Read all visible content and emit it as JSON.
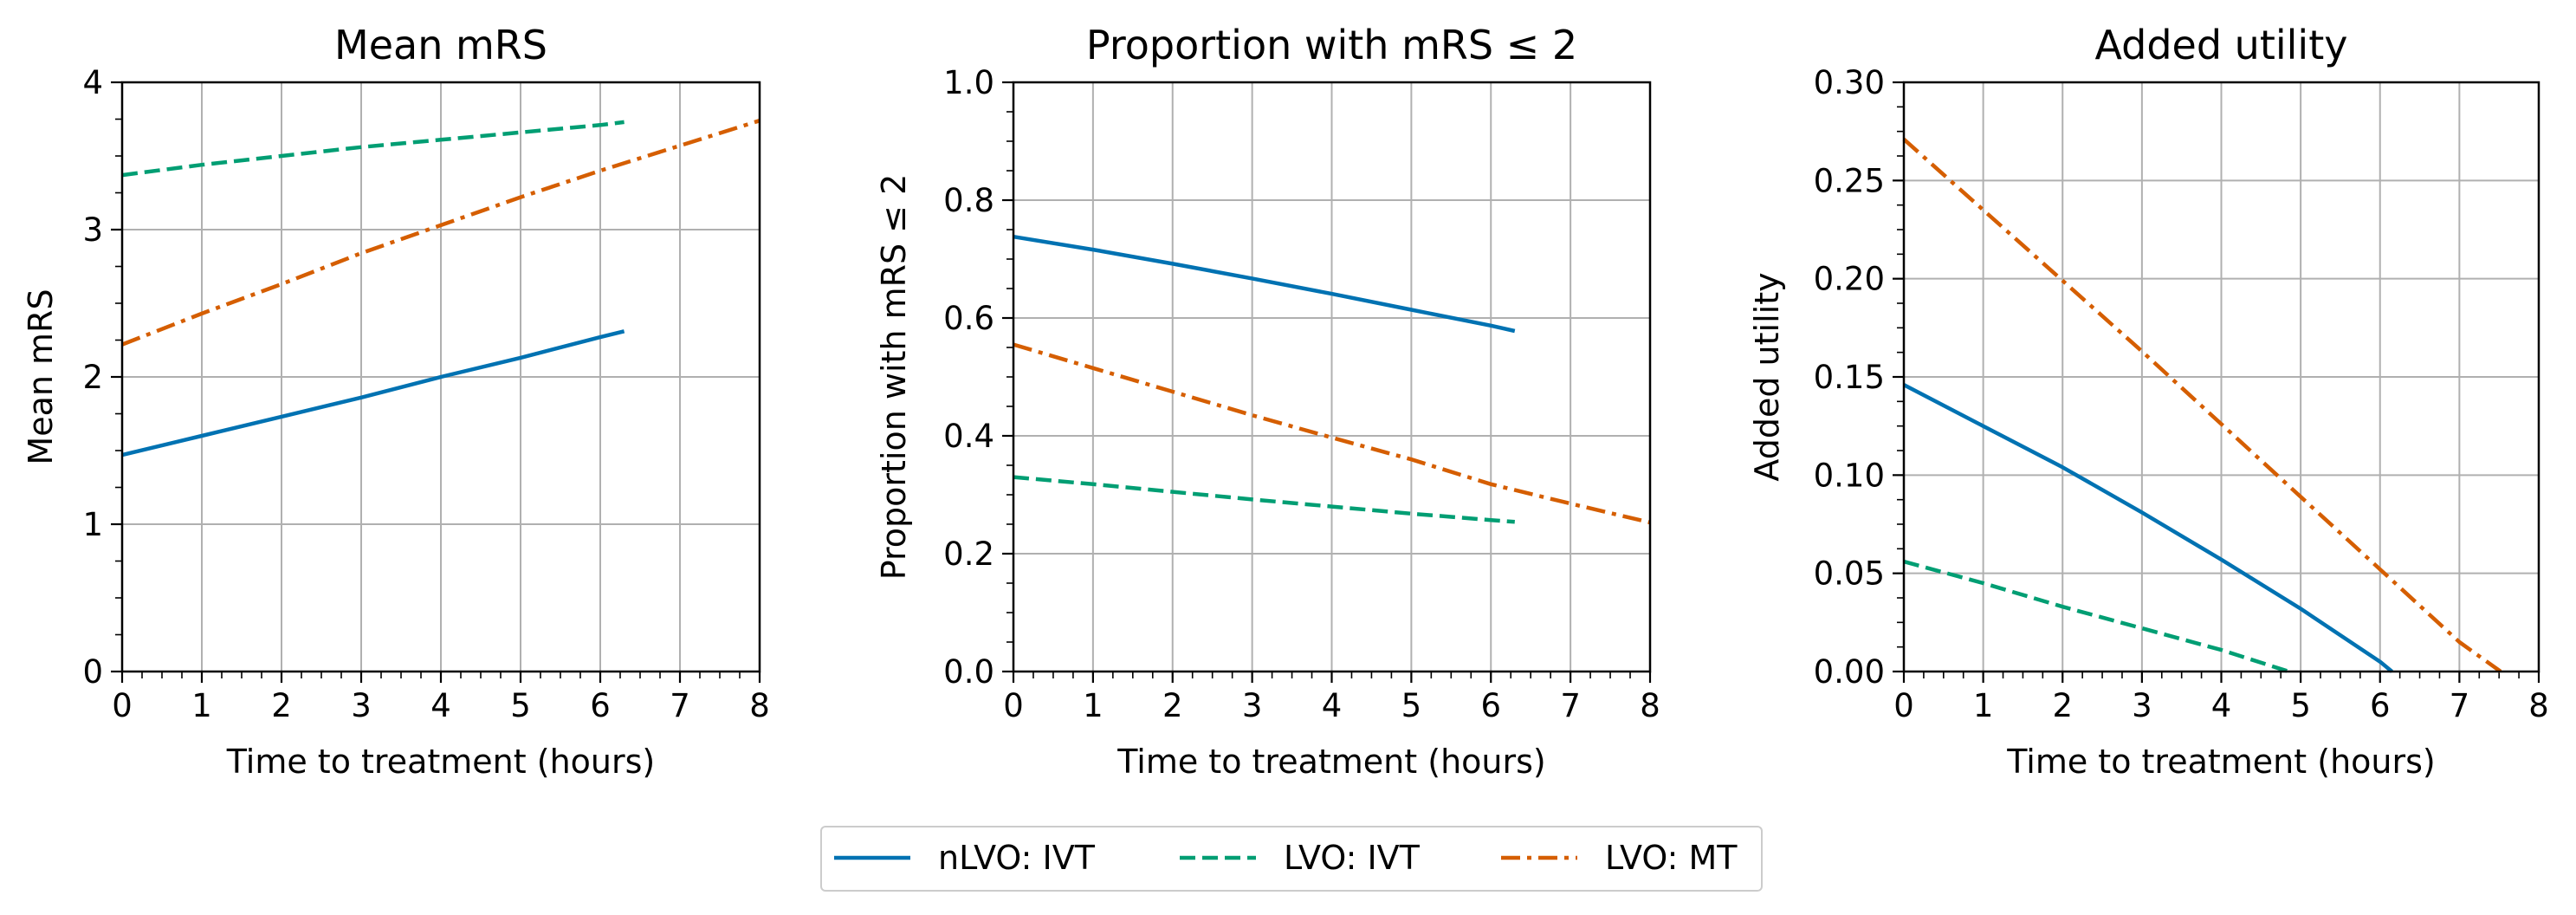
{
  "chart_data": [
    {
      "type": "line",
      "title": "Mean mRS",
      "xlabel": "Time to treatment (hours)",
      "ylabel": "Mean mRS",
      "xlim": [
        0,
        8
      ],
      "ylim": [
        0,
        4
      ],
      "xticks": [
        0,
        1,
        2,
        3,
        4,
        5,
        6,
        7,
        8
      ],
      "yticks": [
        0,
        1,
        2,
        3,
        4
      ],
      "ytick_labels": [
        "0",
        "1",
        "2",
        "3",
        "4"
      ],
      "grid": true,
      "series": [
        {
          "name": "nLVO: IVT",
          "x": [
            0,
            1,
            2,
            3,
            4,
            5,
            6,
            6.3
          ],
          "y": [
            1.47,
            1.6,
            1.73,
            1.86,
            2.0,
            2.13,
            2.27,
            2.31
          ]
        },
        {
          "name": "LVO: IVT",
          "x": [
            0,
            1,
            2,
            3,
            4,
            5,
            6,
            6.3
          ],
          "y": [
            3.37,
            3.44,
            3.5,
            3.56,
            3.61,
            3.66,
            3.71,
            3.73
          ]
        },
        {
          "name": "LVO: MT",
          "x": [
            0,
            1,
            2,
            3,
            4,
            5,
            6,
            7,
            8
          ],
          "y": [
            2.22,
            2.43,
            2.63,
            2.84,
            3.03,
            3.22,
            3.4,
            3.57,
            3.74
          ]
        }
      ]
    },
    {
      "type": "line",
      "title": "Proportion with mRS ≤ 2",
      "xlabel": "Time to treatment (hours)",
      "ylabel": "Proportion with mRS ≤ 2",
      "xlim": [
        0,
        8
      ],
      "ylim": [
        0,
        1
      ],
      "xticks": [
        0,
        1,
        2,
        3,
        4,
        5,
        6,
        7,
        8
      ],
      "yticks": [
        0,
        0.2,
        0.4,
        0.6,
        0.8,
        1.0
      ],
      "ytick_labels": [
        "0.0",
        "0.2",
        "0.4",
        "0.6",
        "0.8",
        "1.0"
      ],
      "grid": true,
      "series": [
        {
          "name": "nLVO: IVT",
          "x": [
            0,
            1,
            2,
            3,
            4,
            5,
            6,
            6.3
          ],
          "y": [
            0.738,
            0.716,
            0.692,
            0.667,
            0.641,
            0.614,
            0.587,
            0.578
          ]
        },
        {
          "name": "LVO: IVT",
          "x": [
            0,
            1,
            2,
            3,
            4,
            5,
            6,
            6.3
          ],
          "y": [
            0.33,
            0.318,
            0.305,
            0.292,
            0.28,
            0.268,
            0.257,
            0.254
          ]
        },
        {
          "name": "LVO: MT",
          "x": [
            0,
            1,
            2,
            3,
            4,
            5,
            6,
            7,
            8
          ],
          "y": [
            0.555,
            0.515,
            0.475,
            0.435,
            0.397,
            0.36,
            0.318,
            0.285,
            0.253
          ]
        }
      ]
    },
    {
      "type": "line",
      "title": "Added utility",
      "xlabel": "Time to treatment (hours)",
      "ylabel": "Added utility",
      "xlim": [
        0,
        8
      ],
      "ylim": [
        0,
        0.3
      ],
      "xticks": [
        0,
        1,
        2,
        3,
        4,
        5,
        6,
        7,
        8
      ],
      "yticks": [
        0,
        0.05,
        0.1,
        0.15,
        0.2,
        0.25,
        0.3
      ],
      "ytick_labels": [
        "0.00",
        "0.05",
        "0.10",
        "0.15",
        "0.20",
        "0.25",
        "0.30"
      ],
      "grid": true,
      "series": [
        {
          "name": "nLVO: IVT",
          "x": [
            0,
            1,
            2,
            3,
            4,
            5,
            6,
            6.15
          ],
          "y": [
            0.146,
            0.125,
            0.104,
            0.081,
            0.057,
            0.032,
            0.005,
            0.0
          ]
        },
        {
          "name": "LVO: IVT",
          "x": [
            0,
            1,
            2,
            3,
            4,
            4.85
          ],
          "y": [
            0.056,
            0.045,
            0.033,
            0.022,
            0.011,
            0.0
          ]
        },
        {
          "name": "LVO: MT",
          "x": [
            0,
            1,
            2,
            3,
            4,
            5,
            6,
            7,
            7.52
          ],
          "y": [
            0.271,
            0.235,
            0.199,
            0.163,
            0.126,
            0.089,
            0.052,
            0.015,
            0.0
          ]
        }
      ]
    }
  ],
  "legend": {
    "placement": "bottom-center",
    "entries": [
      {
        "label": "nLVO: IVT",
        "color": "#0072b2",
        "style": "solid"
      },
      {
        "label": "LVO: IVT",
        "color": "#009e73",
        "style": "dashed"
      },
      {
        "label": "LVO: MT",
        "color": "#d55e00",
        "style": "dashdot"
      }
    ]
  },
  "styles": {
    "nLVO: IVT": {
      "color": "#0072b2",
      "dash": "solid"
    },
    "LVO: IVT": {
      "color": "#009e73",
      "dash": "dashed"
    },
    "LVO: MT": {
      "color": "#d55e00",
      "dash": "dashdot"
    }
  }
}
